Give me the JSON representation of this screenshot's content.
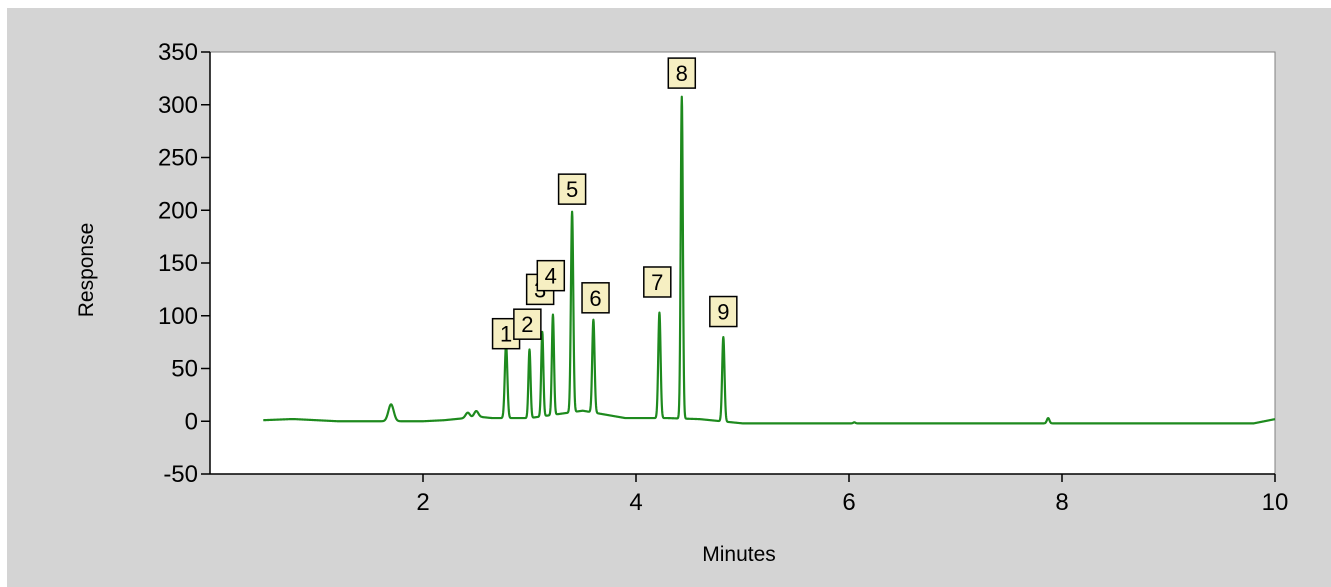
{
  "chart_data": {
    "type": "line",
    "xlabel": "Minutes",
    "ylabel": "Response",
    "xlim": [
      0,
      10
    ],
    "ylim": [
      -50,
      350
    ],
    "x_ticks": [
      2,
      4,
      6,
      8,
      10
    ],
    "y_ticks": [
      350,
      300,
      250,
      200,
      150,
      100,
      50,
      0,
      -50
    ],
    "grid": false,
    "line_color": "#1e8a1e",
    "background_color": "#d4d4d4",
    "plot_background": "#ffffff",
    "series": [
      {
        "baseline": [
          [
            0.5,
            1
          ],
          [
            0.75,
            2
          ],
          [
            0.8,
            2
          ],
          [
            1.0,
            1
          ],
          [
            1.2,
            0
          ],
          [
            1.5,
            0
          ],
          [
            1.65,
            0
          ],
          [
            2.0,
            0
          ],
          [
            2.2,
            1
          ],
          [
            2.4,
            3
          ],
          [
            2.55,
            4
          ],
          [
            2.65,
            3
          ],
          [
            3.0,
            3
          ],
          [
            3.5,
            10
          ],
          [
            3.9,
            3
          ],
          [
            4.3,
            3
          ],
          [
            4.6,
            2
          ],
          [
            5.0,
            -2
          ],
          [
            5.5,
            -2
          ],
          [
            6.0,
            -2
          ],
          [
            7.0,
            -2
          ],
          [
            7.8,
            -2
          ],
          [
            8.0,
            -2
          ],
          [
            9.0,
            -2
          ],
          [
            9.8,
            -2
          ],
          [
            10.0,
            2
          ]
        ],
        "peaks": [
          [
            1.7,
            16,
            0.025
          ],
          [
            2.42,
            5,
            0.02
          ],
          [
            2.5,
            6,
            0.02
          ],
          [
            2.78,
            70,
            0.012
          ],
          [
            3.0,
            65,
            0.01
          ],
          [
            3.12,
            80,
            0.01
          ],
          [
            3.22,
            95,
            0.01
          ],
          [
            3.4,
            190,
            0.011
          ],
          [
            3.6,
            88,
            0.011
          ],
          [
            4.22,
            100,
            0.011
          ],
          [
            4.43,
            305,
            0.01
          ],
          [
            4.82,
            80,
            0.011
          ],
          [
            6.05,
            1,
            0.01
          ],
          [
            7.87,
            5,
            0.012
          ]
        ]
      }
    ],
    "annotations": [
      {
        "label": "1",
        "x": 2.78,
        "y": 83
      },
      {
        "label": "2",
        "x": 2.98,
        "y": 92
      },
      {
        "label": "3",
        "x": 3.1,
        "y": 125
      },
      {
        "label": "4",
        "x": 3.2,
        "y": 138
      },
      {
        "label": "5",
        "x": 3.4,
        "y": 220
      },
      {
        "label": "6",
        "x": 3.62,
        "y": 117
      },
      {
        "label": "7",
        "x": 4.2,
        "y": 132
      },
      {
        "label": "8",
        "x": 4.43,
        "y": 330
      },
      {
        "label": "9",
        "x": 4.82,
        "y": 104
      }
    ]
  }
}
